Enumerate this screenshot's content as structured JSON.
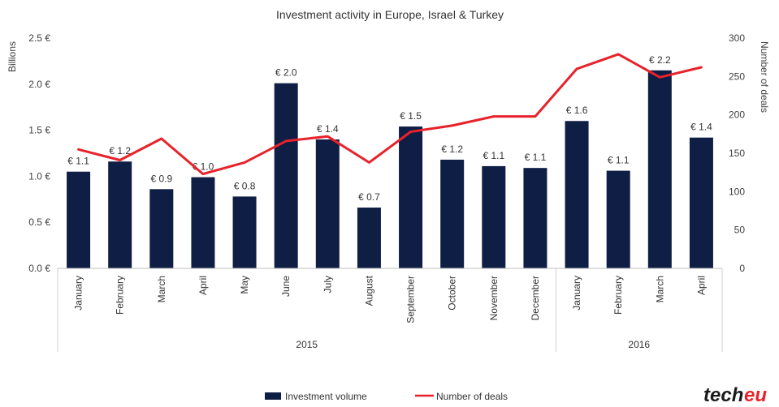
{
  "chart_data": {
    "type": "bar",
    "title": "Investment activity in Europe, Israel & Turkey",
    "ylabel": "Billions",
    "y2label": "Number of deals",
    "ylim": [
      0,
      2.5
    ],
    "y2lim": [
      0,
      300
    ],
    "yticks": [
      "0.0 €",
      "0.5 €",
      "1.0 €",
      "1.5 €",
      "2.0 €",
      "2.5 €"
    ],
    "y2ticks": [
      "0",
      "50",
      "100",
      "150",
      "200",
      "250",
      "300"
    ],
    "categories": [
      "January",
      "February",
      "March",
      "April",
      "May",
      "June",
      "July",
      "August",
      "September",
      "October",
      "November",
      "December",
      "January",
      "February",
      "March",
      "April"
    ],
    "groups": [
      {
        "label": "2015",
        "count": 12
      },
      {
        "label": "2016",
        "count": 4
      }
    ],
    "series": [
      {
        "name": "Investment volume",
        "type": "bar",
        "axis": "left",
        "color": "#0f1e45",
        "values": [
          1.05,
          1.16,
          0.86,
          0.99,
          0.78,
          2.01,
          1.4,
          0.66,
          1.54,
          1.18,
          1.11,
          1.09,
          1.6,
          1.06,
          2.15,
          1.42
        ],
        "labels": [
          "€ 1.1",
          "€ 1.2",
          "€ 0.9",
          "€ 1.0",
          "€ 0.8",
          "€ 2.0",
          "€ 1.4",
          "€ 0.7",
          "€ 1.5",
          "€ 1.2",
          "€ 1.1",
          "€ 1.1",
          "€ 1.6",
          "€ 1.1",
          "€ 2.2",
          "€ 1.4"
        ]
      },
      {
        "name": "Number of deals",
        "type": "line",
        "axis": "right",
        "color": "#e8222b",
        "values": [
          155,
          141,
          169,
          123,
          138,
          166,
          172,
          138,
          178,
          186,
          198,
          198,
          260,
          279,
          249,
          262
        ]
      }
    ],
    "legend_position": "bottom",
    "grid": false
  },
  "logo": {
    "text_part1": "tech",
    "text_part2": "eu"
  }
}
